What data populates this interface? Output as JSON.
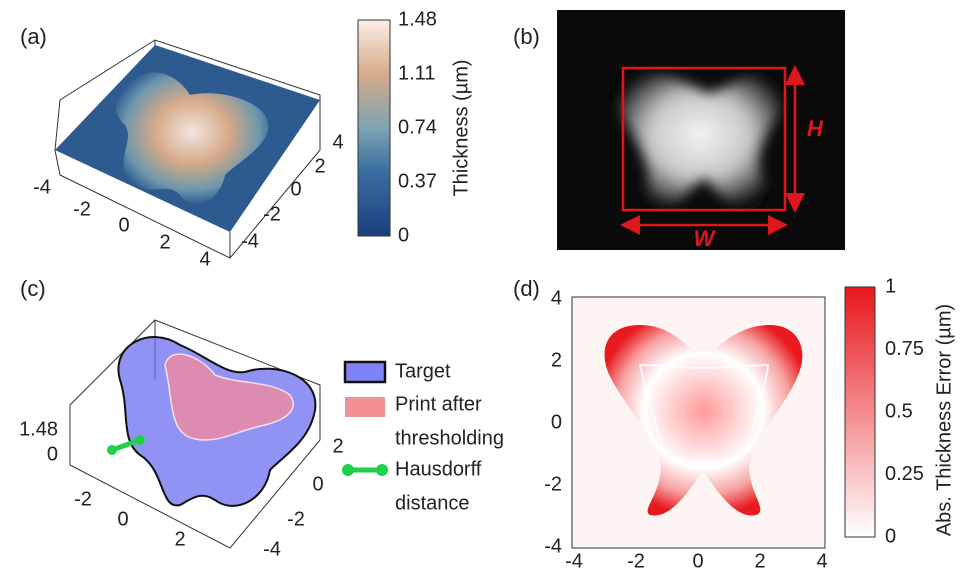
{
  "panels": [
    {
      "label": "(a)",
      "x_ticks": [
        "-4",
        "-2",
        "0",
        "2",
        "4"
      ],
      "y_ticks": [
        "4",
        "2",
        "0",
        "-2",
        "-4"
      ],
      "colorbar": {
        "label": "Thickness (µm)",
        "ticks": [
          "1.48",
          "1.11",
          "0.74",
          "0.37",
          "0"
        ]
      }
    },
    {
      "label": "(b)",
      "height_label": "H",
      "width_label": "W"
    },
    {
      "label": "(c)",
      "z_ticks": [
        "1.48",
        "0"
      ],
      "x_ticks": [
        "-2",
        "0",
        "2"
      ],
      "y_ticks": [
        "2",
        "0",
        "-2",
        "-4"
      ],
      "legend": [
        {
          "lines": [
            "Target"
          ]
        },
        {
          "lines": [
            "Print after",
            "thresholding"
          ]
        },
        {
          "lines": [
            "Hausdorff",
            "distance"
          ]
        }
      ]
    },
    {
      "label": "(d)",
      "x_ticks": [
        "-4",
        "-2",
        "0",
        "2",
        "4"
      ],
      "y_ticks": [
        "4",
        "2",
        "0",
        "-2",
        "-4"
      ],
      "colorbar": {
        "label": "Abs. Thickness Error (µm)",
        "ticks": [
          "1",
          "0.75",
          "0.5",
          "0.25",
          "0"
        ]
      }
    }
  ]
}
